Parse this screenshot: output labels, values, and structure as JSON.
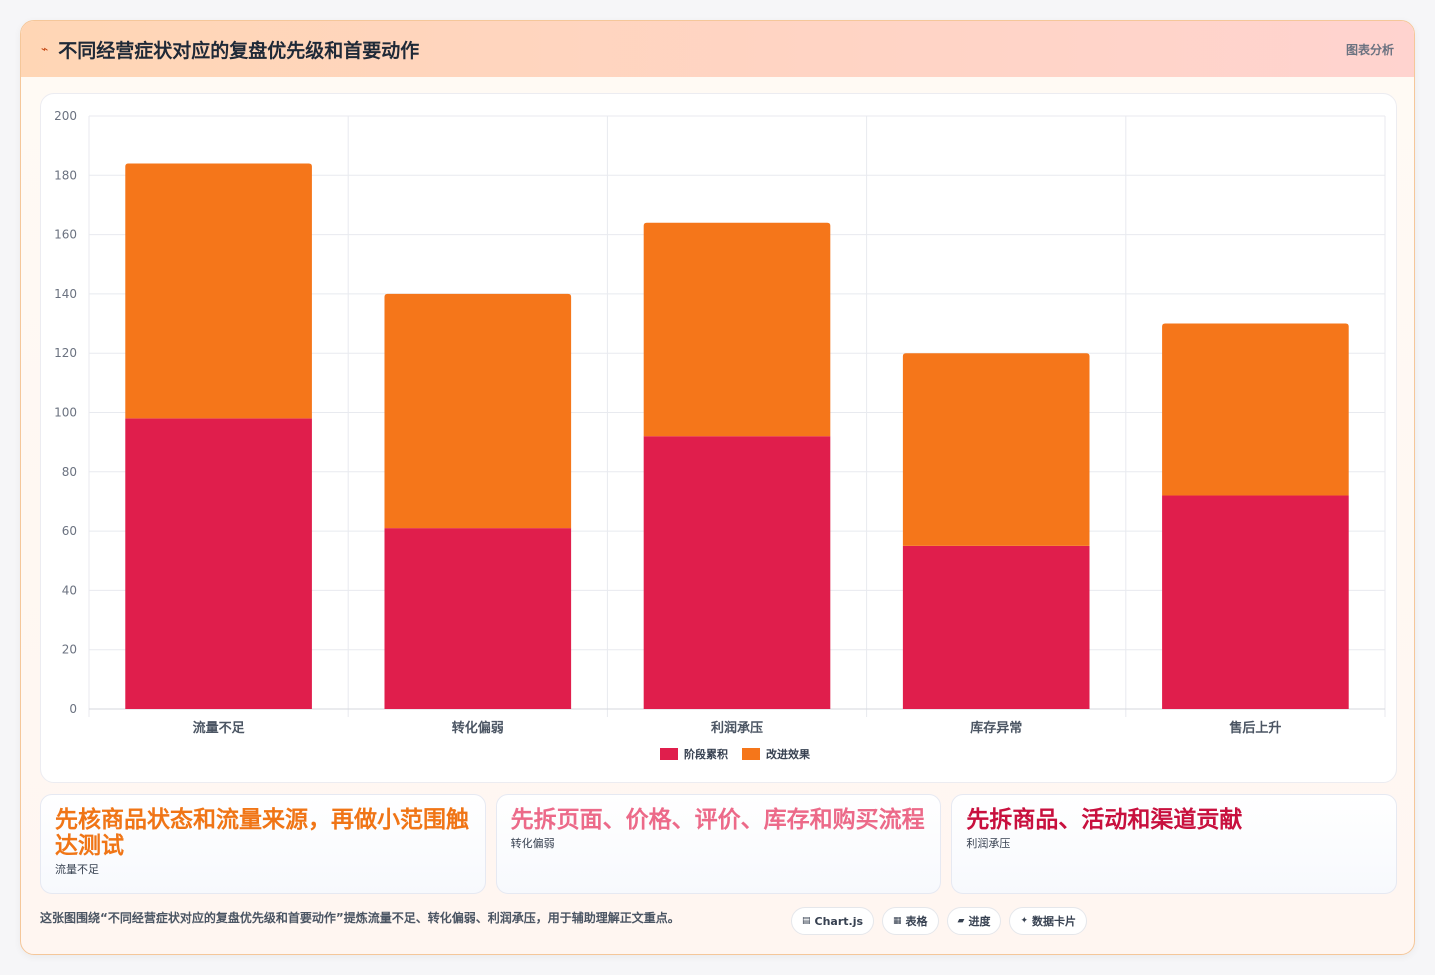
{
  "header": {
    "icon": "chart-line-icon",
    "title": "不同经营症状对应的复盘优先级和首要动作",
    "tag": "图表分析"
  },
  "chart_data": {
    "type": "bar",
    "stacked": true,
    "categories": [
      "流量不足",
      "转化偏弱",
      "利润承压",
      "库存异常",
      "售后上升"
    ],
    "series": [
      {
        "name": "阶段累积",
        "color": "#e01e4c",
        "values": [
          98,
          61,
          92,
          55,
          72
        ]
      },
      {
        "name": "改进效果",
        "color": "#f5761a",
        "values": [
          86,
          79,
          72,
          65,
          58
        ]
      }
    ],
    "ylim": [
      0,
      200
    ],
    "yticks": [
      0,
      20,
      40,
      60,
      80,
      100,
      120,
      140,
      160,
      180,
      200
    ],
    "grid": true,
    "legend": "bottom"
  },
  "insights": [
    {
      "headline": "先核商品状态和流量来源，再做小范围触达测试",
      "label": "流量不足"
    },
    {
      "headline": "先拆页面、价格、评价、库存和购买流程",
      "label": "转化偏弱"
    },
    {
      "headline": "先拆商品、活动和渠道贡献",
      "label": "利润承压"
    }
  ],
  "footer": {
    "text": "这张图围绕“不同经营症状对应的复盘优先级和首要动作”提炼流量不足、转化偏弱、利润承压，用于辅助理解正文重点。"
  },
  "chips": [
    {
      "glyph": "▤",
      "label": "Chart.js",
      "icon": "chart-icon"
    },
    {
      "glyph": "▦",
      "label": "表格",
      "icon": "table-icon"
    },
    {
      "glyph": "▰",
      "label": "进度",
      "icon": "progress-icon"
    },
    {
      "glyph": "✦",
      "label": "数据卡片",
      "icon": "sparkle-icon"
    }
  ]
}
